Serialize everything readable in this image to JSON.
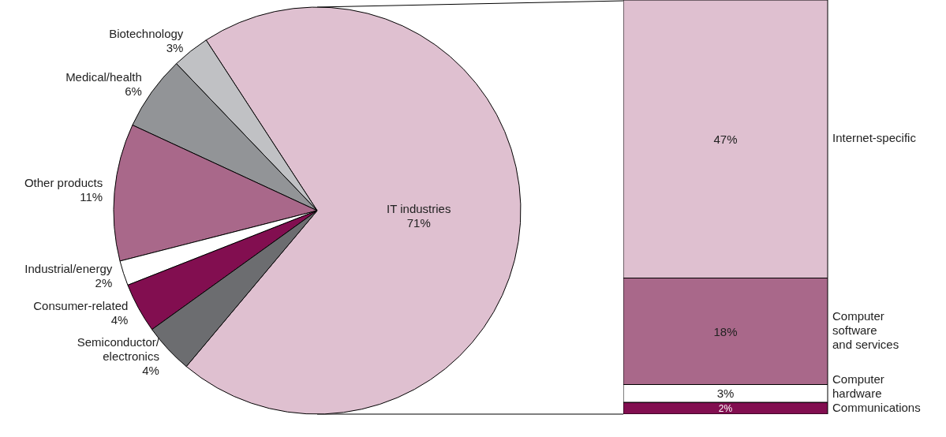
{
  "chart_data": [
    {
      "type": "pie",
      "categories": [
        "IT industries",
        "Biotechnology",
        "Medical/health",
        "Other products",
        "Industrial/energy",
        "Consumer-related",
        "Semiconductor/\nelectronics"
      ],
      "values": [
        71,
        3,
        6,
        11,
        2,
        4,
        4
      ],
      "colors": [
        "#dfc0d0",
        "#c0c1c4",
        "#929497",
        "#a9688a",
        "#ffffff",
        "#820e50",
        "#6c6d70"
      ],
      "value_labels": [
        "71%",
        "3%",
        "6%",
        "11%",
        "2%",
        "4%",
        "4%"
      ]
    },
    {
      "type": "bar",
      "stacked": true,
      "categories": [
        null
      ],
      "series": [
        {
          "name": "Communications",
          "color": "#820e50",
          "values": [
            2
          ],
          "value_labels": [
            "2%"
          ]
        },
        {
          "name": "Computer\nhardware",
          "color": "#ffffff",
          "values": [
            3
          ],
          "value_labels": [
            "3%"
          ]
        },
        {
          "name": "Computer\nsoftware\nand services",
          "color": "#a9688a",
          "values": [
            18
          ],
          "value_labels": [
            "18%"
          ]
        },
        {
          "name": "Internet-specific",
          "color": "#dfc0d0",
          "values": [
            47
          ],
          "value_labels": [
            "47%"
          ]
        }
      ]
    }
  ]
}
